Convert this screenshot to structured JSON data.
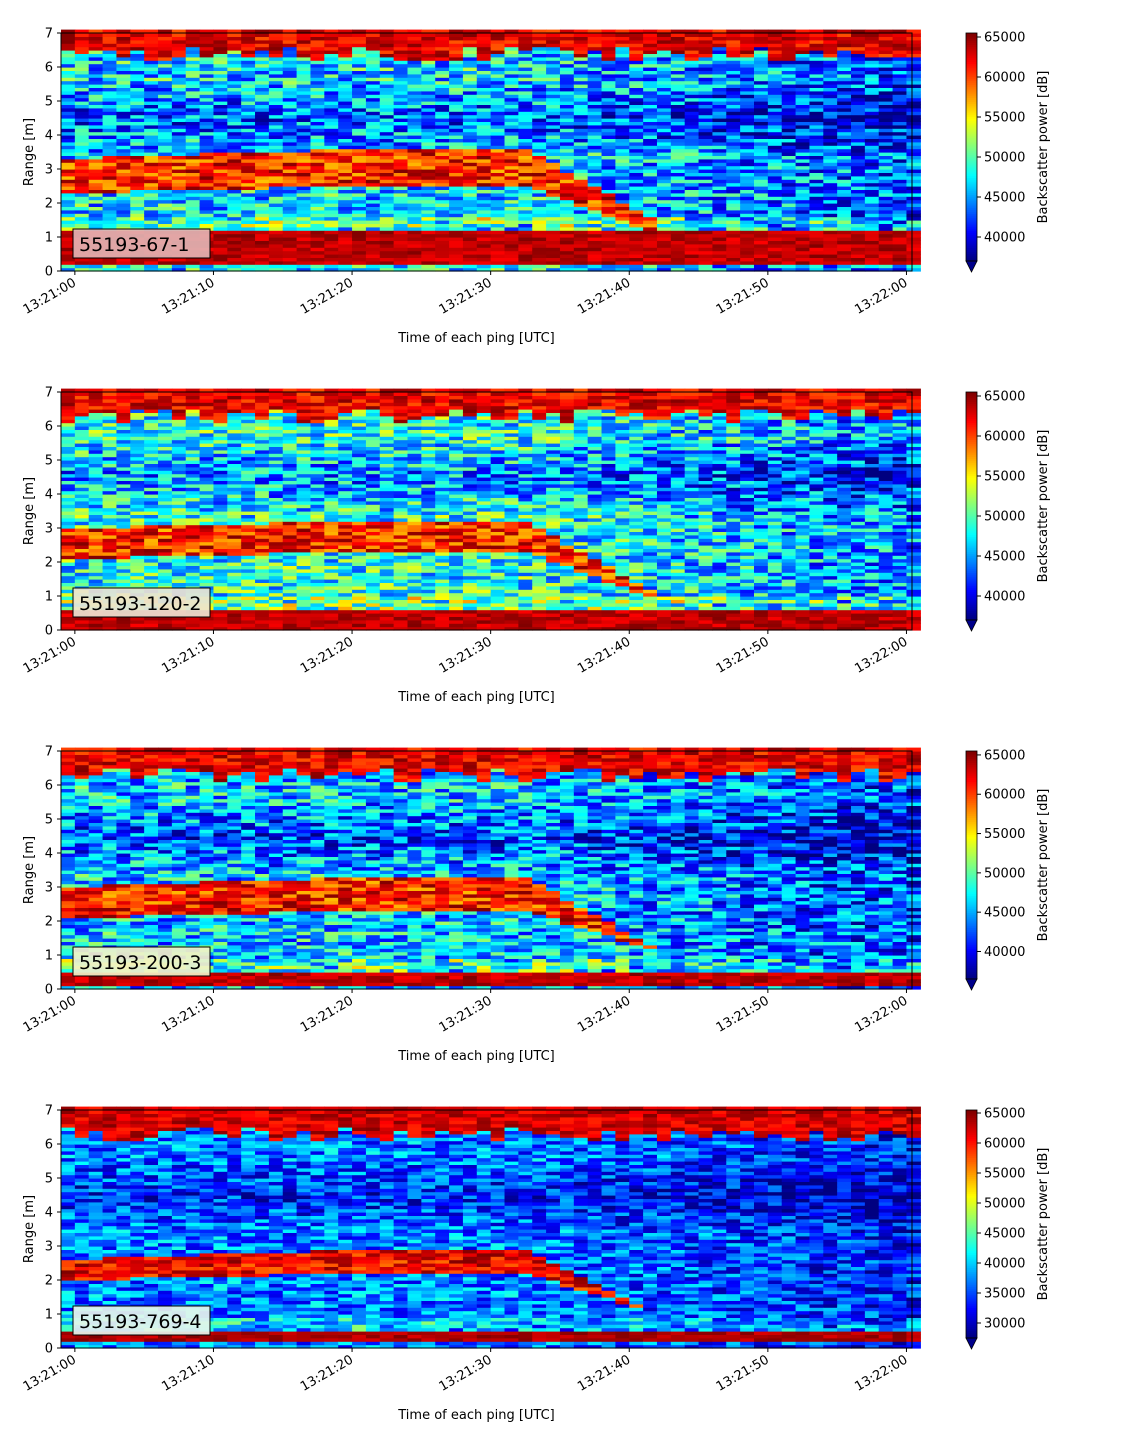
{
  "chart_data": [
    {
      "type": "heatmap",
      "panel_label": "55193-67-1",
      "xlabel": "Time of each ping [UTC]",
      "ylabel": "Range [m]",
      "colorbar_label": "Backscatter power [dB]",
      "colormap": "jet",
      "x_ticks": [
        "13:21:00",
        "13:21:10",
        "13:21:20",
        "13:21:30",
        "13:21:40",
        "13:21:50",
        "13:22:00"
      ],
      "xlim": [
        "13:20:59",
        "13:22:00.4"
      ],
      "y_ticks": [
        0,
        1,
        2,
        3,
        4,
        5,
        6,
        7
      ],
      "ylim": [
        0,
        7
      ],
      "clim": [
        37000,
        65500
      ],
      "colorbar_ticks": [
        40000,
        45000,
        50000,
        55000,
        60000,
        65000
      ],
      "colorbar_extend": "min",
      "label_box_color": "#e3b3b3",
      "features": {
        "bottom_band_m": [
          0.2,
          1.2
        ],
        "top_band_m": [
          6.4,
          7.0
        ],
        "layer_start_m": [
          2.3,
          3.3
        ],
        "layer_mid_m": [
          2.5,
          3.6
        ],
        "layer_dive_start": "13:21:32",
        "layer_end_m": [
          1.2,
          1.9
        ],
        "layer_end": "13:21:41",
        "background_dB": 47000
      }
    },
    {
      "type": "heatmap",
      "panel_label": "55193-120-2",
      "xlabel": "Time of each ping [UTC]",
      "ylabel": "Range [m]",
      "colorbar_label": "Backscatter power [dB]",
      "colormap": "jet",
      "x_ticks": [
        "13:21:00",
        "13:21:10",
        "13:21:20",
        "13:21:30",
        "13:21:40",
        "13:21:50",
        "13:22:00"
      ],
      "xlim": [
        "13:20:59",
        "13:22:00.4"
      ],
      "y_ticks": [
        0,
        1,
        2,
        3,
        4,
        5,
        6,
        7
      ],
      "ylim": [
        0,
        7
      ],
      "clim": [
        37000,
        65500
      ],
      "colorbar_ticks": [
        40000,
        45000,
        50000,
        55000,
        60000,
        65000
      ],
      "colorbar_extend": "min",
      "label_box_color": "#ece4d2",
      "features": {
        "bottom_band_m": [
          0.0,
          0.6
        ],
        "top_band_m": [
          6.3,
          7.0
        ],
        "layer_start_m": [
          2.1,
          3.0
        ],
        "layer_mid_m": [
          2.3,
          3.2
        ],
        "layer_dive_start": "13:21:32",
        "layer_end_m": [
          1.0,
          1.5
        ],
        "layer_end": "13:21:41",
        "background_dB": 48500
      }
    },
    {
      "type": "heatmap",
      "panel_label": "55193-200-3",
      "xlabel": "Time of each ping [UTC]",
      "ylabel": "Range [m]",
      "colorbar_label": "Backscatter power [dB]",
      "colormap": "jet",
      "x_ticks": [
        "13:21:00",
        "13:21:10",
        "13:21:20",
        "13:21:30",
        "13:21:40",
        "13:21:50",
        "13:22:00"
      ],
      "xlim": [
        "13:20:59",
        "13:22:00.4"
      ],
      "y_ticks": [
        0,
        1,
        2,
        3,
        4,
        5,
        6,
        7
      ],
      "ylim": [
        0,
        7
      ],
      "clim": [
        36500,
        65500
      ],
      "colorbar_ticks": [
        40000,
        45000,
        50000,
        55000,
        60000,
        65000
      ],
      "colorbar_extend": "min",
      "label_box_color": "#f2f2c8",
      "features": {
        "bottom_band_m": [
          0.1,
          0.5
        ],
        "top_band_m": [
          6.3,
          7.0
        ],
        "layer_start_m": [
          2.1,
          3.0
        ],
        "layer_mid_m": [
          2.3,
          3.3
        ],
        "layer_dive_start": "13:21:32",
        "layer_end_m": [
          1.2,
          1.6
        ],
        "layer_end": "13:21:41",
        "background_dB": 46000
      }
    },
    {
      "type": "heatmap",
      "panel_label": "55193-769-4",
      "xlabel": "Time of each ping [UTC]",
      "ylabel": "Range [m]",
      "colorbar_label": "Backscatter power [dB]",
      "colormap": "jet",
      "x_ticks": [
        "13:21:00",
        "13:21:10",
        "13:21:20",
        "13:21:30",
        "13:21:40",
        "13:21:50",
        "13:22:00"
      ],
      "xlim": [
        "13:20:59",
        "13:22:00.4"
      ],
      "y_ticks": [
        0,
        1,
        2,
        3,
        4,
        5,
        6,
        7
      ],
      "ylim": [
        0,
        7
      ],
      "clim": [
        27500,
        65500
      ],
      "colorbar_ticks": [
        30000,
        35000,
        40000,
        45000,
        50000,
        55000,
        60000,
        65000
      ],
      "colorbar_extend": "min",
      "label_box_color": "#e6f5ec",
      "features": {
        "bottom_band_m": [
          0.2,
          0.5
        ],
        "top_band_m": [
          6.3,
          6.7
        ],
        "layer_start_m": [
          2.0,
          2.6
        ],
        "layer_mid_m": [
          2.2,
          2.9
        ],
        "layer_dive_start": "13:21:32",
        "layer_end_m": [
          1.1,
          1.4
        ],
        "layer_end": "13:21:41",
        "background_dB": 37000
      }
    }
  ]
}
